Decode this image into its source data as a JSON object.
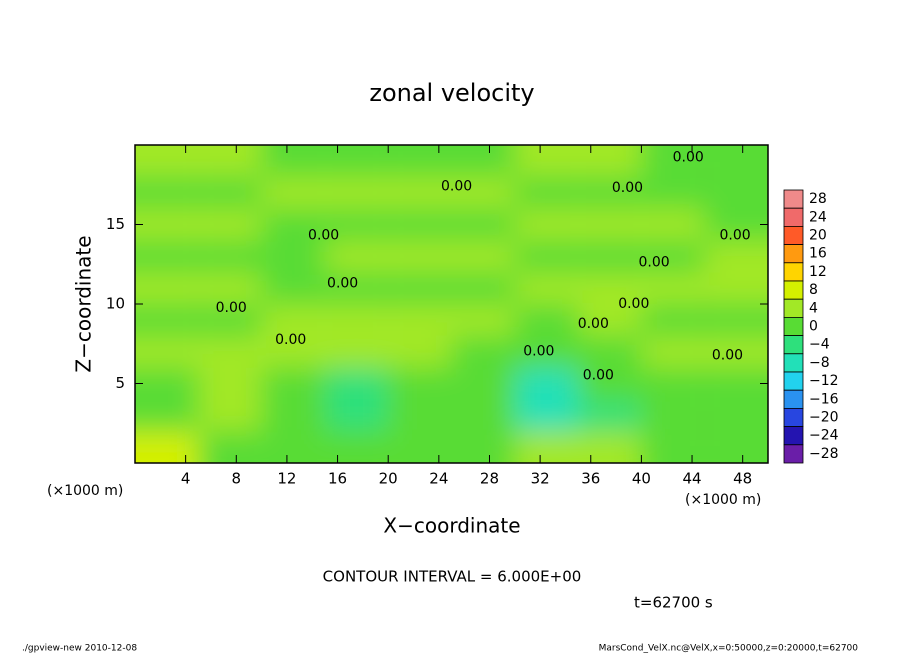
{
  "chart_data": {
    "type": "contour",
    "title": "zonal velocity",
    "xlabel": "X−coordinate",
    "ylabel": "Z−coordinate",
    "x_unit": "(×1000 m)",
    "y_unit": "(×1000 m)",
    "xlim": [
      0,
      50
    ],
    "ylim": [
      0,
      20
    ],
    "xticks": [
      4,
      8,
      12,
      16,
      20,
      24,
      28,
      32,
      36,
      40,
      44,
      48
    ],
    "yticks": [
      5,
      10,
      15
    ],
    "x": [
      2.5,
      7.5,
      12.5,
      17.5,
      22.5,
      27.5,
      32.5,
      37.5,
      42.5,
      47.5
    ],
    "y": [
      1,
      3,
      5,
      7,
      9,
      11,
      13,
      15,
      17,
      19
    ],
    "z": [
      [
        6,
        0,
        -2,
        -2,
        0,
        -2,
        4,
        2,
        -2,
        -2
      ],
      [
        -2,
        2,
        -2,
        -4,
        -2,
        -2,
        -8,
        -4,
        -2,
        -2
      ],
      [
        0,
        2,
        -2,
        -4,
        -2,
        -2,
        -8,
        0,
        0,
        0
      ],
      [
        2,
        2,
        2,
        2,
        2,
        0,
        0,
        0,
        2,
        2
      ],
      [
        0,
        0,
        2,
        2,
        2,
        2,
        0,
        2,
        0,
        0
      ],
      [
        2,
        2,
        0,
        0,
        0,
        0,
        2,
        2,
        2,
        2
      ],
      [
        0,
        0,
        0,
        2,
        2,
        2,
        0,
        0,
        0,
        2
      ],
      [
        2,
        2,
        0,
        0,
        0,
        0,
        2,
        2,
        2,
        0
      ],
      [
        0,
        0,
        2,
        2,
        2,
        2,
        0,
        0,
        0,
        0
      ],
      [
        2,
        2,
        0,
        0,
        0,
        0,
        2,
        2,
        0,
        0
      ]
    ],
    "contour_labels": [
      {
        "x": 43.7,
        "y": 19.2,
        "label": "0.00"
      },
      {
        "x": 38.9,
        "y": 17.3,
        "label": "0.00"
      },
      {
        "x": 25.4,
        "y": 17.4,
        "label": "0.00"
      },
      {
        "x": 14.9,
        "y": 14.3,
        "label": "0.00"
      },
      {
        "x": 47.4,
        "y": 14.3,
        "label": "0.00"
      },
      {
        "x": 41.0,
        "y": 12.6,
        "label": "0.00"
      },
      {
        "x": 16.4,
        "y": 11.3,
        "label": "0.00"
      },
      {
        "x": 7.6,
        "y": 9.75,
        "label": "0.00"
      },
      {
        "x": 39.4,
        "y": 10,
        "label": "0.00"
      },
      {
        "x": 36.2,
        "y": 8.75,
        "label": "0.00"
      },
      {
        "x": 12.3,
        "y": 7.75,
        "label": "0.00"
      },
      {
        "x": 31.9,
        "y": 7,
        "label": "0.00"
      },
      {
        "x": 46.8,
        "y": 6.75,
        "label": "0.00"
      },
      {
        "x": 36.6,
        "y": 5.5,
        "label": "0.00"
      }
    ],
    "colorbar": {
      "levels": [
        28,
        24,
        20,
        16,
        12,
        8,
        4,
        0,
        -4,
        -8,
        -12,
        -16,
        -20,
        -24,
        -28
      ],
      "labels": [
        "28",
        "24",
        "20",
        "16",
        "12",
        "8",
        "4",
        "0",
        "−4",
        "−8",
        "−12",
        "−16",
        "−20",
        "−24",
        "−28"
      ],
      "colors": [
        "#f08a8a",
        "#f06a6a",
        "#ff5a28",
        "#ff9a10",
        "#ffd400",
        "#d4f000",
        "#a2e826",
        "#58dc34",
        "#2ee07c",
        "#22e0b8",
        "#22d2ee",
        "#2a92f0",
        "#2846e0",
        "#2414b0",
        "#6a1ea8"
      ]
    },
    "annotations": [
      "CONTOUR INTERVAL = 6.000E+00",
      "t=62700 s"
    ],
    "footer_left": "./gpview-new   2010-12-08",
    "footer_right": "MarsCond_VelX.nc@VelX,x=0:50000,z=0:20000,t=62700"
  }
}
